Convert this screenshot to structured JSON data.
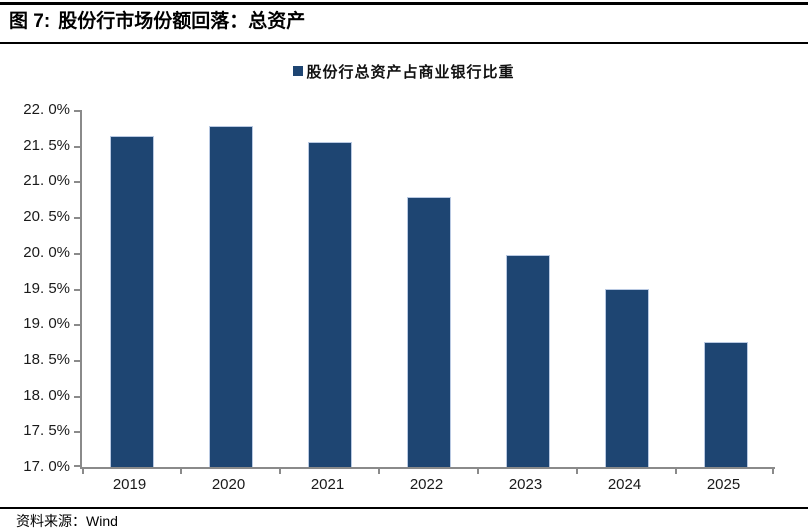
{
  "header": {
    "figure_label": "图 7:",
    "title": "股份行市场份额回落：总资产"
  },
  "legend": {
    "label": "股份行总资产占商业银行比重",
    "marker_color": "#1E4572"
  },
  "chart_data": {
    "type": "bar",
    "title": "股份行总资产占商业银行比重",
    "categories": [
      "2019",
      "2020",
      "2021",
      "2022",
      "2023",
      "2024",
      "2025"
    ],
    "values": [
      21.63,
      21.77,
      21.55,
      20.78,
      19.97,
      19.5,
      18.75
    ],
    "xlabel": "",
    "ylabel": "",
    "ylim": [
      17.0,
      22.0
    ],
    "ytick_step": 0.5,
    "ytick_labels": [
      "22. 0%",
      "21. 5%",
      "21. 0%",
      "20. 5%",
      "20. 0%",
      "19. 5%",
      "19. 0%",
      "18. 5%",
      "18. 0%",
      "17. 5%",
      "17. 0%"
    ],
    "bar_color": "#1E4572",
    "bar_border_color": "#b9c9e2",
    "axis_color": "#8a8a8a",
    "grid": false,
    "legend_position": "top-center"
  },
  "footer": {
    "source_label": "资料来源：",
    "source_value": "Wind"
  }
}
